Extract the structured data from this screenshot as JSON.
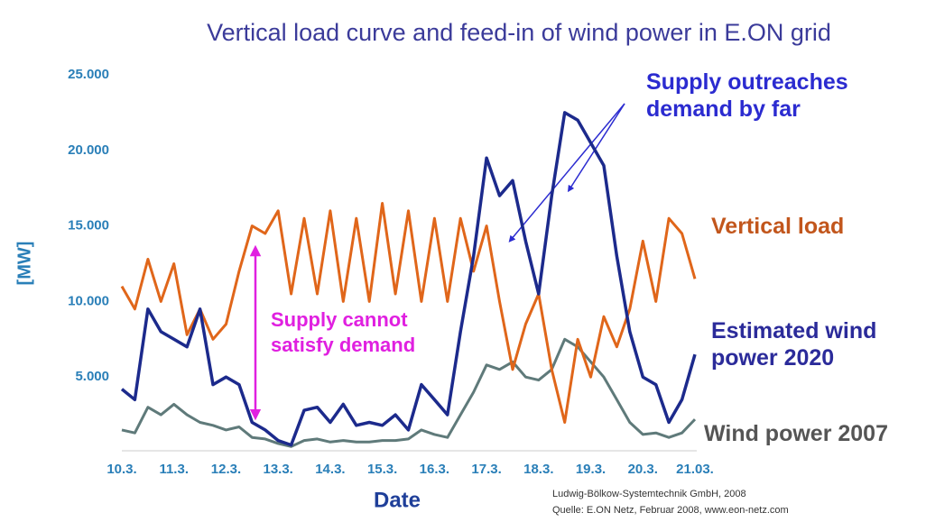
{
  "chart_data": {
    "type": "line",
    "title": "Vertical load curve and feed-in of wind power in E.ON grid",
    "x_label": "Date",
    "y_label": "[MW]",
    "x": [
      0,
      0.25,
      0.5,
      0.75,
      1,
      1.25,
      1.5,
      1.75,
      2,
      2.25,
      2.5,
      2.75,
      3,
      3.25,
      3.5,
      3.75,
      4,
      4.25,
      4.5,
      4.75,
      5,
      5.25,
      5.5,
      5.75,
      6,
      6.25,
      6.5,
      6.75,
      7,
      7.25,
      7.5,
      7.75,
      8,
      8.25,
      8.5,
      8.75,
      9,
      9.25,
      9.5,
      9.75,
      10,
      10.25,
      10.5,
      10.75,
      11
    ],
    "xlim": [
      0,
      11
    ],
    "xticks": [
      {
        "value": 0,
        "label": "10.3."
      },
      {
        "value": 1,
        "label": "11.3."
      },
      {
        "value": 2,
        "label": "12.3."
      },
      {
        "value": 3,
        "label": "13.3."
      },
      {
        "value": 4,
        "label": "14.3."
      },
      {
        "value": 5,
        "label": "15.3."
      },
      {
        "value": 6,
        "label": "16.3."
      },
      {
        "value": 7,
        "label": "17.3."
      },
      {
        "value": 8,
        "label": "18.3."
      },
      {
        "value": 9,
        "label": "19.3."
      },
      {
        "value": 10,
        "label": "20.3."
      },
      {
        "value": 11,
        "label": "21.03."
      }
    ],
    "ylim": [
      0,
      25000
    ],
    "yticks": [
      {
        "value": 5000,
        "label": "5.000"
      },
      {
        "value": 10000,
        "label": "10.000"
      },
      {
        "value": 15000,
        "label": "15.000"
      },
      {
        "value": 20000,
        "label": "20.000"
      },
      {
        "value": 25000,
        "label": "25.000"
      }
    ],
    "grid": false,
    "series": [
      {
        "name": "Vertical load",
        "color": "#e0661a",
        "label_color": "#c2561c",
        "values": [
          11000,
          9500,
          12800,
          10000,
          12500,
          7800,
          9500,
          7500,
          8500,
          12000,
          15000,
          14500,
          16000,
          10500,
          15500,
          10500,
          16000,
          10000,
          15500,
          10000,
          16500,
          10500,
          16000,
          10000,
          15500,
          10000,
          15500,
          12000,
          15000,
          10000,
          5500,
          8500,
          10500,
          5500,
          2000,
          7500,
          5000,
          9000,
          7000,
          9500,
          14000,
          10000,
          15500,
          14500,
          11500
        ]
      },
      {
        "name": "Estimated wind power 2020",
        "color": "#1c2a8c",
        "label_color": "#2b2b9a",
        "values": [
          4200,
          3500,
          9500,
          8000,
          7500,
          7000,
          9500,
          4500,
          5000,
          4500,
          2000,
          1500,
          800,
          500,
          2800,
          3000,
          2000,
          3200,
          1800,
          2000,
          1800,
          2500,
          1500,
          4500,
          3500,
          2500,
          8000,
          13000,
          19500,
          17000,
          18000,
          14000,
          10500,
          17000,
          22500,
          22000,
          20500,
          19000,
          13000,
          8000,
          5000,
          4500,
          2000,
          3500,
          6500
        ]
      },
      {
        "name": "Wind power 2007",
        "color": "#5f7a7a",
        "label_color": "#555555",
        "values": [
          1500,
          1300,
          3000,
          2500,
          3200,
          2500,
          2000,
          1800,
          1500,
          1700,
          1000,
          900,
          600,
          400,
          800,
          900,
          700,
          800,
          700,
          700,
          800,
          800,
          900,
          1500,
          1200,
          1000,
          2500,
          4000,
          5800,
          5500,
          6000,
          5000,
          4800,
          5500,
          7500,
          7000,
          6000,
          5000,
          3500,
          2000,
          1200,
          1300,
          1000,
          1300,
          2200
        ]
      }
    ],
    "annotations": [
      "Supply outreaches demand by far",
      "Supply cannot satisfy demand"
    ],
    "source": [
      "Ludwig-Bölkow-Systemtechnik GmbH, 2008",
      "Quelle: E.ON Netz, Februar 2008, www.eon-netz.com"
    ]
  }
}
